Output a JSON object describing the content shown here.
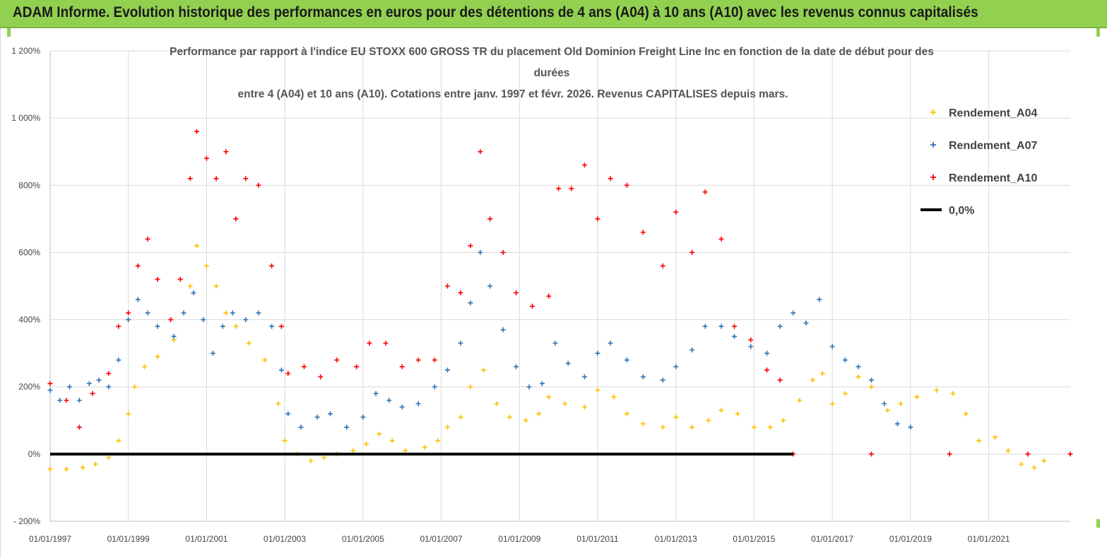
{
  "banner": {
    "title": "ADAM Informe. Evolution historique des performances en euros pour des détentions de 4 ans (A04) à 10 ans (A10) avec les revenus connus capitalisés"
  },
  "colors": {
    "banner": "#92d050",
    "a04": "#ffc000",
    "a07": "#2e75b6",
    "a10": "#ff0000",
    "zero_line": "#000000"
  },
  "chart_data": {
    "type": "scatter",
    "title_lines": [
      "Performance par rapport à l'indice EU STOXX 600 GROSS TR  du placement Old Dominion Freight Line Inc en fonction de la date de début pour des",
      "durées",
      "entre 4 (A04) et 10 ans (A10). Cotations entre janv. 1997 et févr. 2026. Revenus CAPITALISES depuis mars."
    ],
    "xlabel": "",
    "ylabel": "",
    "x_range": [
      "1997-01-01",
      "2023-02-01"
    ],
    "y_range": [
      -200,
      1200
    ],
    "y_ticks": [
      {
        "value": -200,
        "label": "- 200%"
      },
      {
        "value": 0,
        "label": "0%"
      },
      {
        "value": 200,
        "label": "200%"
      },
      {
        "value": 400,
        "label": "400%"
      },
      {
        "value": 600,
        "label": "600%"
      },
      {
        "value": 800,
        "label": "800%"
      },
      {
        "value": 1000,
        "label": "1 000%"
      },
      {
        "value": 1200,
        "label": "1 200%"
      }
    ],
    "x_ticks": [
      {
        "date": "1997-01-01",
        "label": "01/01/1997"
      },
      {
        "date": "1999-01-01",
        "label": "01/01/1999"
      },
      {
        "date": "2001-01-01",
        "label": "01/01/2001"
      },
      {
        "date": "2003-01-01",
        "label": "01/01/2003"
      },
      {
        "date": "2005-01-01",
        "label": "01/01/2005"
      },
      {
        "date": "2007-01-01",
        "label": "01/01/2007"
      },
      {
        "date": "2009-01-01",
        "label": "01/01/2009"
      },
      {
        "date": "2011-01-01",
        "label": "01/01/2011"
      },
      {
        "date": "2013-01-01",
        "label": "01/01/2013"
      },
      {
        "date": "2015-01-01",
        "label": "01/01/2015"
      },
      {
        "date": "2017-01-01",
        "label": "01/01/2017"
      },
      {
        "date": "2019-01-01",
        "label": "01/01/2019"
      },
      {
        "date": "2021-01-01",
        "label": "01/01/2021"
      }
    ],
    "grid": "horizontal",
    "legend_position": "right",
    "series": [
      {
        "name": "Rendement_A04",
        "color": "#ffc000",
        "marker": "plus",
        "points": [
          [
            "1997-01-01",
            -45
          ],
          [
            "1997-06-01",
            -45
          ],
          [
            "1997-11-01",
            -40
          ],
          [
            "1998-03-01",
            -30
          ],
          [
            "1998-07-01",
            -10
          ],
          [
            "1998-10-01",
            40
          ],
          [
            "1999-01-01",
            120
          ],
          [
            "1999-03-01",
            200
          ],
          [
            "1999-06-01",
            260
          ],
          [
            "1999-10-01",
            290
          ],
          [
            "2000-03-01",
            340
          ],
          [
            "2000-08-01",
            500
          ],
          [
            "2000-10-01",
            620
          ],
          [
            "2001-01-01",
            560
          ],
          [
            "2001-04-01",
            500
          ],
          [
            "2001-07-01",
            420
          ],
          [
            "2001-10-01",
            380
          ],
          [
            "2002-02-01",
            330
          ],
          [
            "2002-07-01",
            280
          ],
          [
            "2002-11-01",
            150
          ],
          [
            "2003-01-01",
            40
          ],
          [
            "2003-05-01",
            0
          ],
          [
            "2003-09-01",
            -20
          ],
          [
            "2004-01-01",
            -10
          ],
          [
            "2004-05-01",
            0
          ],
          [
            "2004-10-01",
            10
          ],
          [
            "2005-02-01",
            30
          ],
          [
            "2005-06-01",
            60
          ],
          [
            "2005-10-01",
            40
          ],
          [
            "2006-02-01",
            10
          ],
          [
            "2006-08-01",
            20
          ],
          [
            "2006-12-01",
            40
          ],
          [
            "2007-03-01",
            80
          ],
          [
            "2007-07-01",
            110
          ],
          [
            "2007-10-01",
            200
          ],
          [
            "2008-02-01",
            250
          ],
          [
            "2008-06-01",
            150
          ],
          [
            "2008-10-01",
            110
          ],
          [
            "2009-03-01",
            100
          ],
          [
            "2009-07-01",
            120
          ],
          [
            "2009-10-01",
            170
          ],
          [
            "2010-03-01",
            150
          ],
          [
            "2010-09-01",
            140
          ],
          [
            "2011-01-01",
            190
          ],
          [
            "2011-06-01",
            170
          ],
          [
            "2011-10-01",
            120
          ],
          [
            "2012-03-01",
            90
          ],
          [
            "2012-09-01",
            80
          ],
          [
            "2013-01-01",
            110
          ],
          [
            "2013-06-01",
            80
          ],
          [
            "2013-11-01",
            100
          ],
          [
            "2014-03-01",
            130
          ],
          [
            "2014-08-01",
            120
          ],
          [
            "2015-01-01",
            80
          ],
          [
            "2015-06-01",
            80
          ],
          [
            "2015-10-01",
            100
          ],
          [
            "2016-03-01",
            160
          ],
          [
            "2016-07-01",
            220
          ],
          [
            "2016-10-01",
            240
          ],
          [
            "2017-01-01",
            150
          ],
          [
            "2017-05-01",
            180
          ],
          [
            "2017-09-01",
            230
          ],
          [
            "2018-01-01",
            200
          ],
          [
            "2018-06-01",
            130
          ],
          [
            "2018-10-01",
            150
          ],
          [
            "2019-03-01",
            170
          ],
          [
            "2019-09-01",
            190
          ],
          [
            "2020-02-01",
            180
          ],
          [
            "2020-06-01",
            120
          ],
          [
            "2020-10-01",
            40
          ],
          [
            "2021-03-01",
            50
          ],
          [
            "2021-07-01",
            10
          ],
          [
            "2021-11-01",
            -30
          ],
          [
            "2022-03-01",
            -40
          ],
          [
            "2022-06-01",
            -20
          ]
        ]
      },
      {
        "name": "Rendement_A07",
        "color": "#2e75b6",
        "marker": "plus",
        "points": [
          [
            "1997-01-01",
            190
          ],
          [
            "1997-04-01",
            160
          ],
          [
            "1997-07-01",
            200
          ],
          [
            "1997-10-01",
            160
          ],
          [
            "1998-01-01",
            210
          ],
          [
            "1998-04-01",
            220
          ],
          [
            "1998-07-01",
            200
          ],
          [
            "1998-10-01",
            280
          ],
          [
            "1999-01-01",
            400
          ],
          [
            "1999-04-01",
            460
          ],
          [
            "1999-07-01",
            420
          ],
          [
            "1999-10-01",
            380
          ],
          [
            "2000-03-01",
            350
          ],
          [
            "2000-06-01",
            420
          ],
          [
            "2000-09-01",
            480
          ],
          [
            "2000-12-01",
            400
          ],
          [
            "2001-03-01",
            300
          ],
          [
            "2001-06-01",
            380
          ],
          [
            "2001-09-01",
            420
          ],
          [
            "2002-01-01",
            400
          ],
          [
            "2002-05-01",
            420
          ],
          [
            "2002-09-01",
            380
          ],
          [
            "2002-12-01",
            250
          ],
          [
            "2003-02-01",
            120
          ],
          [
            "2003-06-01",
            80
          ],
          [
            "2003-11-01",
            110
          ],
          [
            "2004-03-01",
            120
          ],
          [
            "2004-08-01",
            80
          ],
          [
            "2005-01-01",
            110
          ],
          [
            "2005-05-01",
            180
          ],
          [
            "2005-09-01",
            160
          ],
          [
            "2006-01-01",
            140
          ],
          [
            "2006-06-01",
            150
          ],
          [
            "2006-11-01",
            200
          ],
          [
            "2007-03-01",
            250
          ],
          [
            "2007-07-01",
            330
          ],
          [
            "2007-10-01",
            450
          ],
          [
            "2008-01-01",
            600
          ],
          [
            "2008-04-01",
            500
          ],
          [
            "2008-08-01",
            370
          ],
          [
            "2008-12-01",
            260
          ],
          [
            "2009-04-01",
            200
          ],
          [
            "2009-08-01",
            210
          ],
          [
            "2009-12-01",
            330
          ],
          [
            "2010-04-01",
            270
          ],
          [
            "2010-09-01",
            230
          ],
          [
            "2011-01-01",
            300
          ],
          [
            "2011-05-01",
            330
          ],
          [
            "2011-10-01",
            280
          ],
          [
            "2012-03-01",
            230
          ],
          [
            "2012-09-01",
            220
          ],
          [
            "2013-01-01",
            260
          ],
          [
            "2013-06-01",
            310
          ],
          [
            "2013-10-01",
            380
          ],
          [
            "2014-03-01",
            380
          ],
          [
            "2014-07-01",
            350
          ],
          [
            "2014-12-01",
            320
          ],
          [
            "2015-05-01",
            300
          ],
          [
            "2015-09-01",
            380
          ],
          [
            "2016-01-01",
            420
          ],
          [
            "2016-05-01",
            390
          ],
          [
            "2016-09-01",
            460
          ],
          [
            "2017-01-01",
            320
          ],
          [
            "2017-05-01",
            280
          ],
          [
            "2017-09-01",
            260
          ],
          [
            "2018-01-01",
            220
          ],
          [
            "2018-05-01",
            150
          ],
          [
            "2018-09-01",
            90
          ],
          [
            "2019-01-01",
            80
          ]
        ]
      },
      {
        "name": "Rendement_A10",
        "color": "#ff0000",
        "marker": "plus",
        "points": [
          [
            "1997-01-01",
            210
          ],
          [
            "1997-06-01",
            160
          ],
          [
            "1997-10-01",
            80
          ],
          [
            "1998-02-01",
            180
          ],
          [
            "1998-07-01",
            240
          ],
          [
            "1998-10-01",
            380
          ],
          [
            "1999-01-01",
            420
          ],
          [
            "1999-04-01",
            560
          ],
          [
            "1999-07-01",
            640
          ],
          [
            "1999-10-01",
            520
          ],
          [
            "2000-02-01",
            400
          ],
          [
            "2000-05-01",
            520
          ],
          [
            "2000-08-01",
            820
          ],
          [
            "2000-10-01",
            960
          ],
          [
            "2001-01-01",
            880
          ],
          [
            "2001-04-01",
            820
          ],
          [
            "2001-07-01",
            900
          ],
          [
            "2001-10-01",
            700
          ],
          [
            "2002-01-01",
            820
          ],
          [
            "2002-05-01",
            800
          ],
          [
            "2002-09-01",
            560
          ],
          [
            "2002-12-01",
            380
          ],
          [
            "2003-02-01",
            240
          ],
          [
            "2003-07-01",
            260
          ],
          [
            "2003-12-01",
            230
          ],
          [
            "2004-05-01",
            280
          ],
          [
            "2004-11-01",
            260
          ],
          [
            "2005-03-01",
            330
          ],
          [
            "2005-08-01",
            330
          ],
          [
            "2006-01-01",
            260
          ],
          [
            "2006-06-01",
            280
          ],
          [
            "2006-11-01",
            280
          ],
          [
            "2007-03-01",
            500
          ],
          [
            "2007-07-01",
            480
          ],
          [
            "2007-10-01",
            620
          ],
          [
            "2008-01-01",
            900
          ],
          [
            "2008-04-01",
            700
          ],
          [
            "2008-08-01",
            600
          ],
          [
            "2008-12-01",
            480
          ],
          [
            "2009-05-01",
            440
          ],
          [
            "2009-10-01",
            470
          ],
          [
            "2010-01-01",
            790
          ],
          [
            "2010-05-01",
            790
          ],
          [
            "2010-09-01",
            860
          ],
          [
            "2011-01-01",
            700
          ],
          [
            "2011-05-01",
            820
          ],
          [
            "2011-10-01",
            800
          ],
          [
            "2012-03-01",
            660
          ],
          [
            "2012-09-01",
            560
          ],
          [
            "2013-01-01",
            720
          ],
          [
            "2013-06-01",
            600
          ],
          [
            "2013-10-01",
            780
          ],
          [
            "2014-03-01",
            640
          ],
          [
            "2014-07-01",
            380
          ],
          [
            "2014-12-01",
            340
          ],
          [
            "2015-05-01",
            250
          ],
          [
            "2015-09-01",
            220
          ],
          [
            "2016-01-01",
            0
          ],
          [
            "2018-01-01",
            0
          ],
          [
            "2020-01-01",
            0
          ],
          [
            "2022-01-01",
            0
          ],
          [
            "2023-02-01",
            0
          ]
        ]
      },
      {
        "name": "0,0%",
        "color": "#000000",
        "marker": "line",
        "points": [
          [
            "1997-01-01",
            0
          ],
          [
            "2016-01-01",
            0
          ]
        ]
      }
    ]
  }
}
